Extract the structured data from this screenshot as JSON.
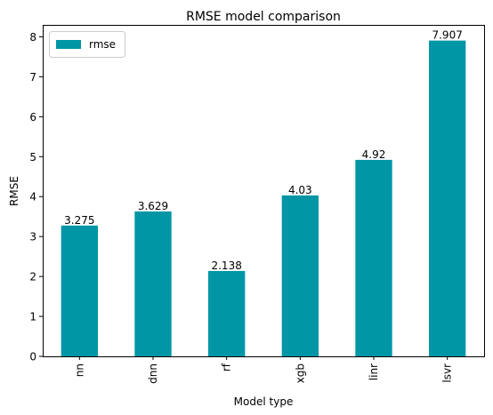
{
  "chart_data": {
    "type": "bar",
    "title": "RMSE model comparison",
    "xlabel": "Model type",
    "ylabel": "RMSE",
    "categories": [
      "nn",
      "dnn",
      "rf",
      "xgb",
      "linr",
      "lsvr"
    ],
    "series": [
      {
        "name": "rmse",
        "values": [
          3.275,
          3.629,
          2.138,
          4.03,
          4.92,
          7.907
        ],
        "labels": [
          "3.275",
          "3.629",
          "2.138",
          "4.03",
          "4.92",
          "7.907"
        ],
        "color": "#0096a6"
      }
    ],
    "ylim": [
      0,
      8.3
    ],
    "yticks": [
      0,
      1,
      2,
      3,
      4,
      5,
      6,
      7,
      8
    ],
    "grid": false,
    "legend": "top-left"
  }
}
